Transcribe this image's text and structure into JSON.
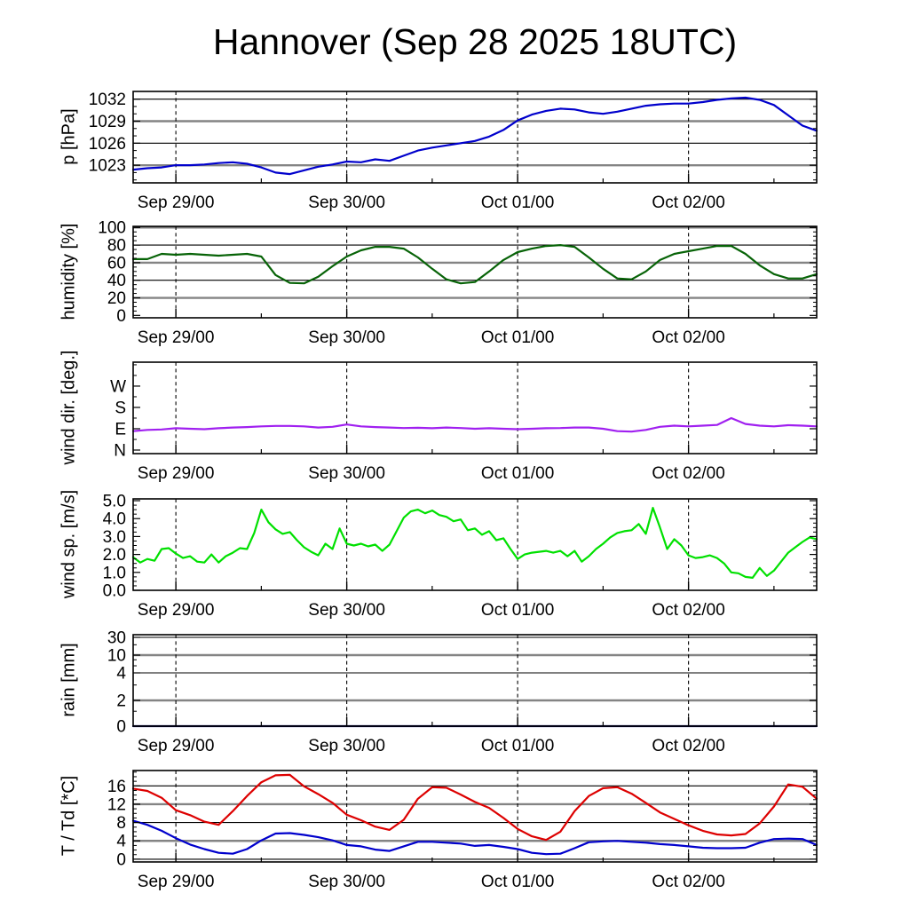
{
  "title": "Hannover (Sep 28 2025 18UTC)",
  "chart_data": {
    "type": "line",
    "title": "Hannover (Sep 28 2025 18UTC)",
    "x": {
      "unit": "hours since Sep 28 2025 18UTC",
      "range": [
        0,
        96
      ],
      "tick_hours": [
        6,
        30,
        54,
        78
      ],
      "tick_labels": [
        "Sep 29/00",
        "Sep 30/00",
        "Oct 01/00",
        "Oct 02/00"
      ],
      "minor_tick_hours": [
        18,
        42,
        66,
        90
      ],
      "grid": "dashed vertical lines at 00 UTC"
    },
    "panels": [
      {
        "id": "pressure",
        "ylabel": "p [hPa]",
        "ylim": [
          1020.6,
          1033.05
        ],
        "yticks": [
          {
            "value": 1023,
            "label": "1023",
            "grid": "gray"
          },
          {
            "value": 1026,
            "label": "1026",
            "grid": "black"
          },
          {
            "value": 1029,
            "label": "1029",
            "grid": "gray"
          },
          {
            "value": 1032,
            "label": "1032",
            "grid": "black"
          }
        ],
        "minor_ticks": [
          1021,
          1022,
          1024,
          1025,
          1027,
          1028,
          1030,
          1031,
          1033
        ],
        "series": [
          {
            "name": "pressure",
            "color": "#0000cc",
            "step_hours": 2,
            "values": [
              1022.4,
              1022.6,
              1022.7,
              1023.0,
              1023.0,
              1023.1,
              1023.3,
              1023.4,
              1023.2,
              1022.7,
              1022.0,
              1021.8,
              1022.3,
              1022.8,
              1023.1,
              1023.5,
              1023.4,
              1023.8,
              1023.6,
              1024.3,
              1025.0,
              1025.4,
              1025.7,
              1026.0,
              1026.3,
              1026.9,
              1027.8,
              1029.1,
              1029.9,
              1030.4,
              1030.7,
              1030.6,
              1030.2,
              1030.0,
              1030.3,
              1030.7,
              1031.1,
              1031.3,
              1031.4,
              1031.4,
              1031.6,
              1031.9,
              1032.1,
              1032.2,
              1031.9,
              1031.2,
              1029.8,
              1028.4,
              1027.7
            ]
          }
        ]
      },
      {
        "id": "humidity",
        "ylabel": "humidity [%]",
        "ylim": [
          -2.7,
          101.3
        ],
        "yticks": [
          {
            "value": 0,
            "label": "0",
            "grid": "none"
          },
          {
            "value": 20,
            "label": "20",
            "grid": "gray"
          },
          {
            "value": 40,
            "label": "40",
            "grid": "black"
          },
          {
            "value": 60,
            "label": "60",
            "grid": "gray"
          },
          {
            "value": 80,
            "label": "80",
            "grid": "black"
          },
          {
            "value": 100,
            "label": "100",
            "grid": "gray"
          }
        ],
        "minor_ticks": [
          5,
          10,
          15,
          25,
          30,
          35,
          45,
          50,
          55,
          65,
          70,
          75,
          85,
          90,
          95
        ],
        "series": [
          {
            "name": "relative-humidity",
            "color": "#076307",
            "step_hours": 2,
            "values": [
              64,
              64,
              70,
              69,
              70,
              69,
              68,
              69,
              70,
              67,
              46,
              37,
              36.5,
              44,
              56,
              67,
              74,
              78,
              78,
              76,
              66,
              53,
              41,
              36.5,
              38,
              50,
              63,
              72,
              76,
              79,
              80,
              78,
              66,
              53,
              42,
              41,
              50,
              63,
              70,
              73,
              76,
              79,
              79,
              70,
              57,
              47,
              42,
              42,
              47
            ]
          }
        ]
      },
      {
        "id": "wind-direction",
        "ylabel": "wind dir. [deg.]",
        "ylim": [
          -15,
          371
        ],
        "yticks": [
          {
            "value": 0,
            "label": "N",
            "grid": "none"
          },
          {
            "value": 90,
            "label": "E",
            "grid": "none"
          },
          {
            "value": 180,
            "label": "S",
            "grid": "none"
          },
          {
            "value": 270,
            "label": "W",
            "grid": "none"
          }
        ],
        "minor_ticks": [
          45,
          135,
          225,
          315,
          360
        ],
        "series": [
          {
            "name": "wind-direction",
            "color": "#a020f0",
            "step_hours": 2,
            "values": [
              80,
              85,
              87,
              92,
              90,
              88,
              92,
              95,
              97,
              100,
              102,
              102,
              100,
              95,
              98,
              108,
              100,
              97,
              95,
              93,
              94,
              92,
              95,
              93,
              90,
              92,
              90,
              88,
              90,
              92,
              93,
              95,
              95,
              90,
              80,
              78,
              85,
              98,
              103,
              100,
              103,
              106,
              135,
              110,
              103,
              100,
              105,
              103,
              100
            ]
          }
        ]
      },
      {
        "id": "wind-speed",
        "ylabel": "wind sp. [m/s]",
        "ylim": [
          0,
          5.1
        ],
        "yticks": [
          {
            "value": 0,
            "label": "0.0",
            "grid": "none"
          },
          {
            "value": 1,
            "label": "1.0",
            "grid": "none"
          },
          {
            "value": 2,
            "label": "2.0",
            "grid": "none"
          },
          {
            "value": 3,
            "label": "3.0",
            "grid": "none"
          },
          {
            "value": 4,
            "label": "4.0",
            "grid": "none"
          },
          {
            "value": 5,
            "label": "5.0",
            "grid": "none"
          }
        ],
        "minor_ticks": [
          0.25,
          0.5,
          0.75,
          1.25,
          1.5,
          1.75,
          2.25,
          2.5,
          2.75,
          3.25,
          3.5,
          3.75,
          4.25,
          4.5,
          4.75
        ],
        "series": [
          {
            "name": "wind-speed",
            "color": "#00e000",
            "step_hours": 1,
            "values": [
              1.85,
              1.55,
              1.75,
              1.65,
              2.3,
              2.35,
              2.05,
              1.8,
              1.9,
              1.6,
              1.55,
              2.0,
              1.55,
              1.9,
              2.1,
              2.35,
              2.3,
              3.2,
              4.5,
              3.8,
              3.4,
              3.15,
              3.25,
              2.8,
              2.4,
              2.15,
              1.95,
              2.6,
              2.3,
              3.45,
              2.6,
              2.5,
              2.6,
              2.45,
              2.55,
              2.2,
              2.55,
              3.3,
              4.05,
              4.4,
              4.5,
              4.3,
              4.45,
              4.2,
              4.1,
              3.85,
              3.95,
              3.35,
              3.45,
              3.1,
              3.3,
              2.8,
              2.9,
              2.3,
              1.75,
              2.0,
              2.1,
              2.15,
              2.2,
              2.1,
              2.2,
              1.9,
              2.2,
              1.6,
              1.9,
              2.3,
              2.6,
              2.95,
              3.2,
              3.3,
              3.35,
              3.7,
              3.15,
              4.6,
              3.5,
              2.3,
              2.85,
              2.5,
              1.95,
              1.8,
              1.85,
              1.95,
              1.8,
              1.5,
              1.0,
              0.95,
              0.75,
              0.7,
              1.25,
              0.8,
              1.1,
              1.6,
              2.1,
              2.4,
              2.7,
              2.95,
              2.85
            ]
          }
        ]
      },
      {
        "id": "rain",
        "ylabel": "rain [mm]",
        "scale": "nonlinear",
        "ylim": [
          0,
          1
        ],
        "yticks": [
          {
            "value": 0,
            "label": "0",
            "grid": "none",
            "pos": 0.0
          },
          {
            "value": 2,
            "label": "2",
            "grid": "gray",
            "pos": 0.2816
          },
          {
            "value": 4,
            "label": "4",
            "grid": "black",
            "pos": 0.5825
          },
          {
            "value": 10,
            "label": "10",
            "grid": "gray",
            "pos": 0.7767
          },
          {
            "value": 30,
            "label": "30",
            "grid": "black",
            "pos": 0.9709
          }
        ],
        "minor_ticks": [
          {
            "pos": 0.163
          },
          {
            "pos": 0.45
          },
          {
            "pos": 0.66
          },
          {
            "pos": 0.726
          },
          {
            "pos": 0.89
          }
        ],
        "series": [
          {
            "name": "rain",
            "color": "#000066",
            "step_hours": 8,
            "values": [
              0,
              0,
              0,
              0,
              0,
              0,
              0,
              0,
              0,
              0,
              0,
              0,
              0
            ]
          }
        ]
      },
      {
        "id": "temperature",
        "ylabel": "T / Td [*C]",
        "ylim": [
          -0.6,
          19.35
        ],
        "yticks": [
          {
            "value": 0,
            "label": "0",
            "grid": "black"
          },
          {
            "value": 4,
            "label": "4",
            "grid": "gray"
          },
          {
            "value": 8,
            "label": "8",
            "grid": "black"
          },
          {
            "value": 12,
            "label": "12",
            "grid": "gray"
          },
          {
            "value": 16,
            "label": "16",
            "grid": "black"
          }
        ],
        "minor_ticks": [
          1,
          2,
          3,
          5,
          6,
          7,
          9,
          10,
          11,
          13,
          14,
          15,
          17,
          18,
          19
        ],
        "series": [
          {
            "name": "temperature",
            "color": "#dd0000",
            "step_hours": 2,
            "values": [
              15.4,
              14.9,
              13.4,
              10.7,
              9.6,
              8.2,
              7.5,
              10.5,
              13.8,
              16.8,
              18.3,
              18.4,
              15.9,
              14.2,
              12.3,
              9.7,
              8.5,
              7.1,
              6.4,
              8.6,
              13.2,
              15.7,
              15.6,
              14.1,
              12.5,
              11.2,
              9.0,
              6.6,
              5.0,
              4.2,
              6.0,
              10.5,
              13.8,
              15.5,
              15.7,
              14.3,
              12.3,
              10.2,
              8.8,
              7.4,
              6.2,
              5.4,
              5.2,
              5.5,
              7.8,
              11.5,
              16.3,
              15.8,
              13.2
            ]
          },
          {
            "name": "dewpoint",
            "color": "#0000cc",
            "step_hours": 2,
            "values": [
              8.4,
              7.5,
              6.2,
              4.6,
              3.2,
              2.2,
              1.4,
              1.2,
              2.2,
              4.1,
              5.6,
              5.7,
              5.3,
              4.8,
              4.1,
              3.1,
              2.8,
              2.1,
              1.8,
              2.8,
              3.8,
              3.8,
              3.6,
              3.4,
              2.9,
              3.1,
              2.7,
              2.2,
              1.4,
              1.1,
              1.2,
              2.4,
              3.7,
              3.9,
              4.0,
              3.8,
              3.6,
              3.3,
              3.1,
              2.8,
              2.5,
              2.4,
              2.4,
              2.5,
              3.6,
              4.4,
              4.5,
              4.4,
              3.1
            ]
          }
        ]
      }
    ],
    "style": {
      "gray_grid_color": "#848484",
      "black_grid_color": "#000000",
      "border_color": "#000000",
      "background": "#ffffff"
    }
  }
}
